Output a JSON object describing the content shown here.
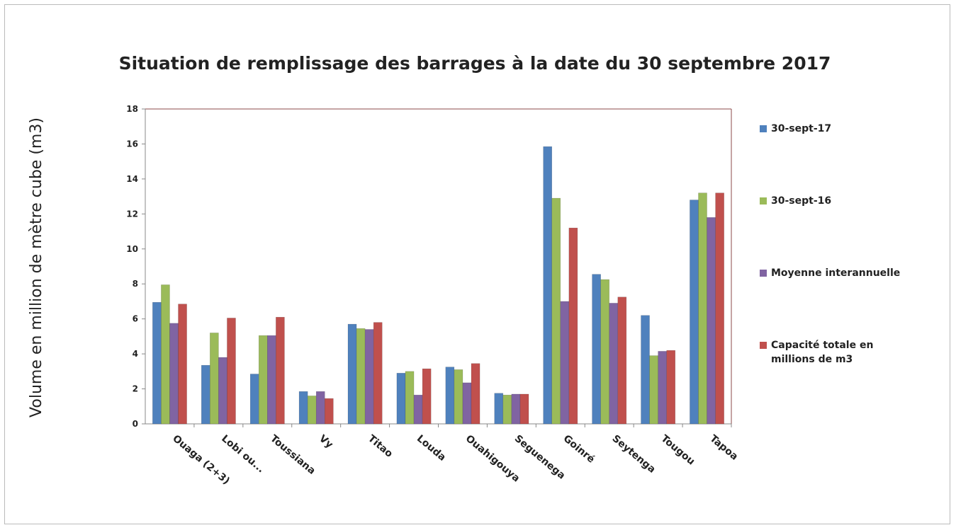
{
  "chart_data": {
    "type": "bar",
    "title": "Situation de remplissage des barrages à la date du 30 septembre 2017",
    "y_label": "Volume en million de mètre cube (m3)",
    "categories": [
      "Ouaga (2+3)",
      "Lobi ou...",
      "Toussiana",
      "Vy",
      "Titao",
      "Louda",
      "Ouahigouya",
      "Seguenega",
      "Goinré",
      "Seytenga",
      "Tougou",
      "Tapoa"
    ],
    "series": [
      {
        "name": "30-sept-17",
        "color": "#4f81bd",
        "values": [
          6.95,
          3.35,
          2.85,
          1.85,
          5.7,
          2.9,
          3.25,
          1.75,
          15.85,
          8.55,
          6.2,
          12.8
        ]
      },
      {
        "name": "30-sept-16",
        "color": "#9bbb59",
        "values": [
          7.95,
          5.2,
          5.05,
          1.6,
          5.45,
          3.0,
          3.1,
          1.65,
          12.9,
          8.25,
          3.9,
          13.2
        ]
      },
      {
        "name": "Moyenne interannuelle",
        "color": "#8064a2",
        "values": [
          5.75,
          3.8,
          5.05,
          1.85,
          5.4,
          1.65,
          2.35,
          1.7,
          7.0,
          6.9,
          4.15,
          11.8
        ]
      },
      {
        "name": "Capacité totale en millions de m3",
        "color": "#c0504d",
        "values": [
          6.85,
          6.05,
          6.1,
          1.45,
          5.8,
          3.15,
          3.45,
          1.7,
          11.2,
          7.25,
          4.2,
          13.2
        ]
      }
    ],
    "ylim": [
      0,
      18
    ],
    "yticks": [
      0,
      2,
      4,
      6,
      8,
      10,
      12,
      14,
      16,
      18
    ],
    "legend": "right"
  }
}
